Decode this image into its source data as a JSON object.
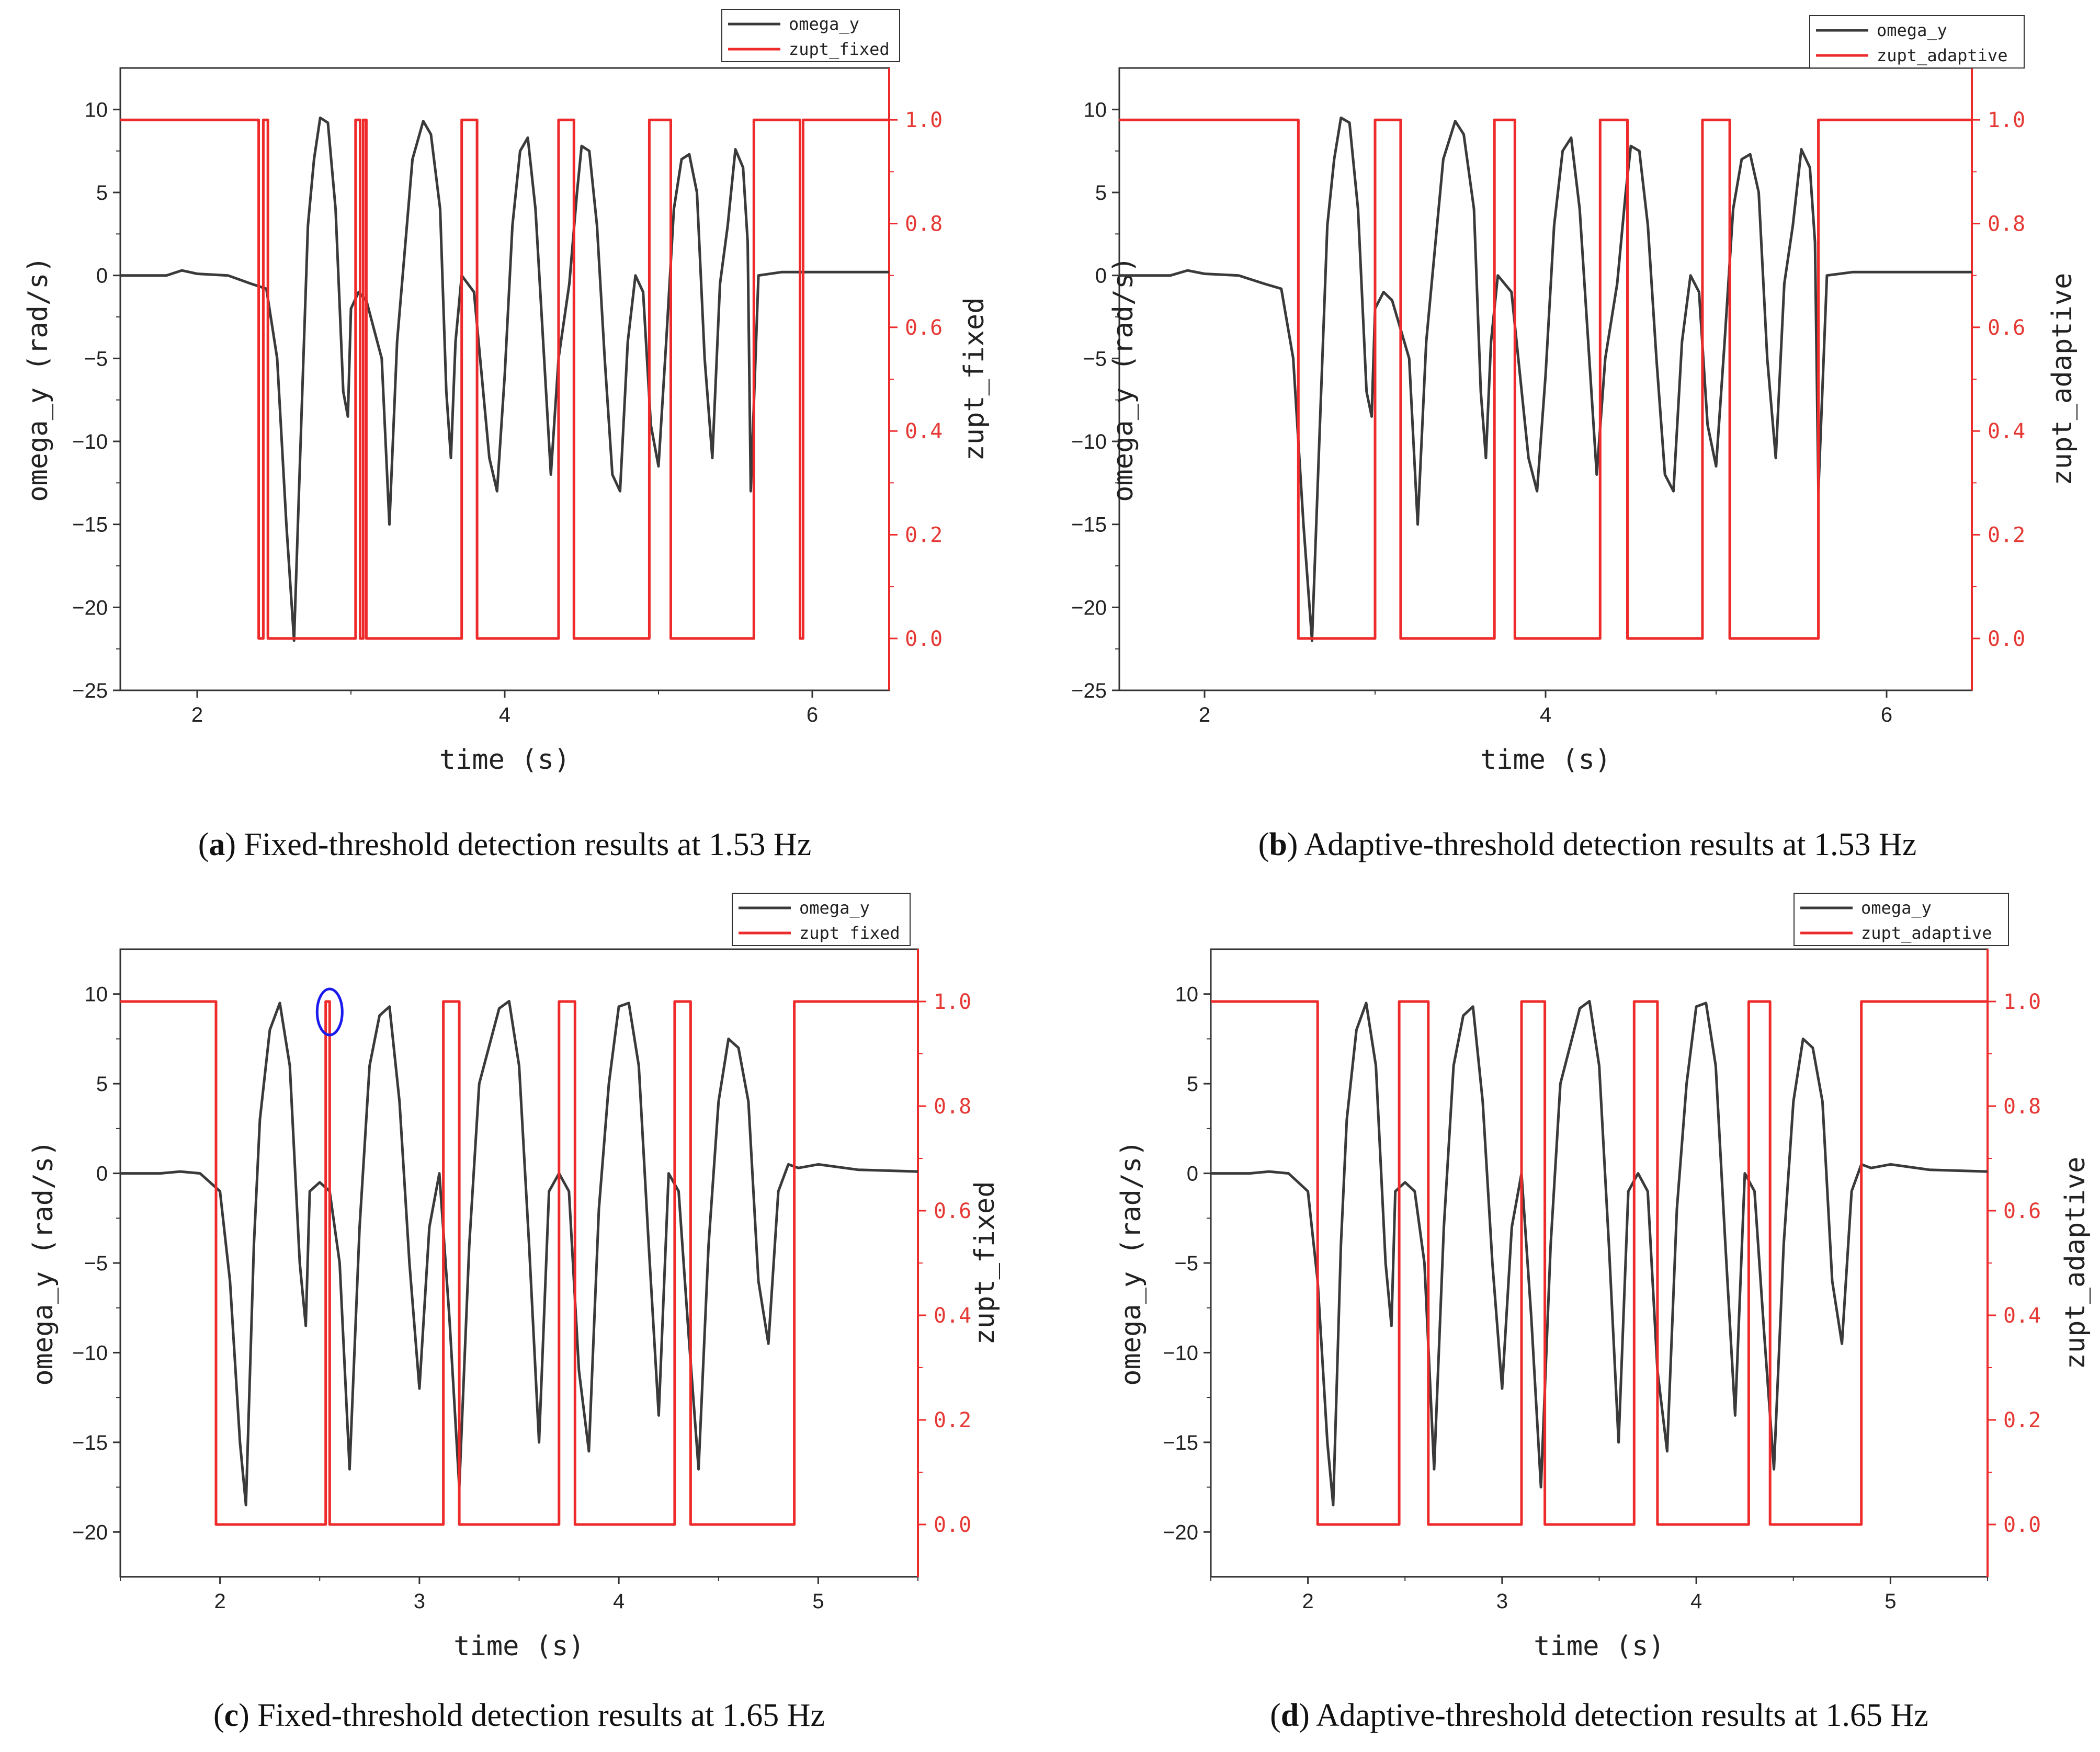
{
  "colors": {
    "omega": "#3a3a3a",
    "zupt": "#ee2a2a",
    "marker": "#1a1aee"
  },
  "chart_data": [
    {
      "id": "a",
      "type": "line",
      "caption_label": "a",
      "caption_text": "Fixed-threshold detection results at 1.53 Hz",
      "xlabel": "time (s)",
      "ylabel": "omega_y (rad/s)",
      "y2label": "zupt_fixed",
      "xlim": [
        1.5,
        6.5
      ],
      "ylim": [
        -25,
        12.5
      ],
      "y2lim": [
        -0.1,
        1.1
      ],
      "xticks": [
        2,
        4,
        6
      ],
      "yticks": [
        10,
        5,
        0,
        -5,
        -10,
        -15,
        -20,
        -25
      ],
      "y2ticks": [
        0.0,
        0.2,
        0.4,
        0.6,
        0.8,
        1.0
      ],
      "legend": [
        "omega_y",
        "zupt_fixed"
      ],
      "x_tick_labels": [
        "2",
        "4",
        "6"
      ],
      "y_tick_labels": [
        "10",
        "5",
        "0",
        "−5",
        "−10",
        "−15",
        "−20",
        "−25"
      ],
      "y2_tick_labels": [
        "0.0",
        "0.2",
        "0.4",
        "0.6",
        "0.8",
        "1.0"
      ],
      "series": [
        {
          "name": "omega_y",
          "axis": "left",
          "x": [
            1.5,
            1.8,
            1.9,
            2.0,
            2.2,
            2.35,
            2.45,
            2.52,
            2.58,
            2.63,
            2.68,
            2.72,
            2.76,
            2.8,
            2.85,
            2.9,
            2.95,
            2.98,
            3.0,
            3.05,
            3.1,
            3.2,
            3.25,
            3.3,
            3.4,
            3.47,
            3.52,
            3.58,
            3.62,
            3.65,
            3.68,
            3.72,
            3.8,
            3.9,
            3.95,
            4.0,
            4.05,
            4.1,
            4.15,
            4.2,
            4.25,
            4.3,
            4.35,
            4.42,
            4.47,
            4.5,
            4.55,
            4.6,
            4.65,
            4.7,
            4.75,
            4.8,
            4.85,
            4.9,
            4.95,
            5.0,
            5.05,
            5.1,
            5.15,
            5.2,
            5.25,
            5.3,
            5.35,
            5.4,
            5.45,
            5.5,
            5.55,
            5.58,
            5.6,
            5.65,
            5.8,
            6.0,
            6.2,
            6.5
          ],
          "values": [
            0,
            0,
            0.3,
            0.1,
            0.0,
            -0.5,
            -0.8,
            -5,
            -15,
            -22,
            -8,
            3,
            7,
            9.5,
            9.2,
            4,
            -7,
            -8.5,
            -2,
            -1,
            -1.5,
            -5,
            -15,
            -4,
            7,
            9.3,
            8.5,
            4,
            -7,
            -11,
            -4,
            0,
            -1,
            -11,
            -13,
            -6,
            3,
            7.5,
            8.3,
            4,
            -4,
            -12,
            -5,
            -0.5,
            5,
            7.8,
            7.5,
            3,
            -5,
            -12,
            -13,
            -4,
            0,
            -1,
            -9,
            -11.5,
            -4,
            4,
            7,
            7.3,
            5,
            -5,
            -11,
            -0.5,
            3,
            7.6,
            6.5,
            2,
            -13,
            0,
            0.2,
            0.2,
            0.2,
            0.2
          ]
        },
        {
          "name": "zupt_fixed",
          "axis": "right",
          "x": [
            1.5,
            2.4,
            2.4,
            2.43,
            2.43,
            2.46,
            2.46,
            2.52,
            2.52,
            3.03,
            3.03,
            3.06,
            3.06,
            3.08,
            3.08,
            3.1,
            3.1,
            3.72,
            3.72,
            3.82,
            3.82,
            4.35,
            4.35,
            4.45,
            4.45,
            4.94,
            4.94,
            5.08,
            5.08,
            5.62,
            5.62,
            5.92,
            5.92,
            5.94,
            5.94,
            6.5
          ],
          "values": [
            1,
            1,
            0,
            0,
            1,
            1,
            0,
            0,
            0,
            0,
            1,
            1,
            0,
            0,
            1,
            1,
            0,
            0,
            1,
            1,
            0,
            0,
            1,
            1,
            0,
            0,
            1,
            1,
            0,
            0,
            1,
            1,
            0,
            0,
            1,
            1
          ]
        }
      ]
    },
    {
      "id": "b",
      "type": "line",
      "caption_label": "b",
      "caption_text": "Adaptive-threshold detection results at 1.53 Hz",
      "xlabel": "time (s)",
      "ylabel": "omega_y (rad/s)",
      "y2label": "zupt_adaptive",
      "xlim": [
        1.5,
        6.5
      ],
      "ylim": [
        -25,
        12.5
      ],
      "y2lim": [
        -0.1,
        1.1
      ],
      "xticks": [
        2,
        4,
        6
      ],
      "yticks": [
        10,
        5,
        0,
        -5,
        -10,
        -15,
        -20,
        -25
      ],
      "y2ticks": [
        0.0,
        0.2,
        0.4,
        0.6,
        0.8,
        1.0
      ],
      "legend": [
        "omega_y",
        "zupt_adaptive"
      ],
      "x_tick_labels": [
        "2",
        "4",
        "6"
      ],
      "y_tick_labels": [
        "10",
        "5",
        "0",
        "−5",
        "−10",
        "−15",
        "−20",
        "−25"
      ],
      "y2_tick_labels": [
        "0.0",
        "0.2",
        "0.4",
        "0.6",
        "0.8",
        "1.0"
      ],
      "series": [
        {
          "name": "omega_y",
          "axis": "left",
          "x": [
            1.5,
            1.8,
            1.9,
            2.0,
            2.2,
            2.35,
            2.45,
            2.52,
            2.58,
            2.63,
            2.68,
            2.72,
            2.76,
            2.8,
            2.85,
            2.9,
            2.95,
            2.98,
            3.0,
            3.05,
            3.1,
            3.2,
            3.25,
            3.3,
            3.4,
            3.47,
            3.52,
            3.58,
            3.62,
            3.65,
            3.68,
            3.72,
            3.8,
            3.9,
            3.95,
            4.0,
            4.05,
            4.1,
            4.15,
            4.2,
            4.25,
            4.3,
            4.35,
            4.42,
            4.47,
            4.5,
            4.55,
            4.6,
            4.65,
            4.7,
            4.75,
            4.8,
            4.85,
            4.9,
            4.95,
            5.0,
            5.05,
            5.1,
            5.15,
            5.2,
            5.25,
            5.3,
            5.35,
            5.4,
            5.45,
            5.5,
            5.55,
            5.58,
            5.6,
            5.65,
            5.8,
            6.0,
            6.2,
            6.5
          ],
          "values": [
            0,
            0,
            0.3,
            0.1,
            0.0,
            -0.5,
            -0.8,
            -5,
            -15,
            -22,
            -8,
            3,
            7,
            9.5,
            9.2,
            4,
            -7,
            -8.5,
            -2,
            -1,
            -1.5,
            -5,
            -15,
            -4,
            7,
            9.3,
            8.5,
            4,
            -7,
            -11,
            -4,
            0,
            -1,
            -11,
            -13,
            -6,
            3,
            7.5,
            8.3,
            4,
            -4,
            -12,
            -5,
            -0.5,
            5,
            7.8,
            7.5,
            3,
            -5,
            -12,
            -13,
            -4,
            0,
            -1,
            -9,
            -11.5,
            -4,
            4,
            7,
            7.3,
            5,
            -5,
            -11,
            -0.5,
            3,
            7.6,
            6.5,
            2,
            -13,
            0,
            0.2,
            0.2,
            0.2,
            0.2
          ]
        },
        {
          "name": "zupt_adaptive",
          "axis": "right",
          "x": [
            1.5,
            2.55,
            2.55,
            3.0,
            3.0,
            3.15,
            3.15,
            3.7,
            3.7,
            3.82,
            3.82,
            4.32,
            4.32,
            4.48,
            4.48,
            4.92,
            4.92,
            5.08,
            5.08,
            5.6,
            5.6,
            6.5
          ],
          "values": [
            1,
            1,
            0,
            0,
            1,
            1,
            0,
            0,
            1,
            1,
            0,
            0,
            1,
            1,
            0,
            0,
            1,
            1,
            0,
            0,
            1,
            1
          ]
        }
      ]
    },
    {
      "id": "c",
      "type": "line",
      "caption_label": "c",
      "caption_text": "Fixed-threshold detection results at 1.65 Hz",
      "xlabel": "time (s)",
      "ylabel": "omega_y (rad/s)",
      "y2label": "zupt_fixed",
      "xlim": [
        1.5,
        5.5
      ],
      "ylim": [
        -22.5,
        12.5
      ],
      "y2lim": [
        -0.1,
        1.1
      ],
      "xticks": [
        2,
        3,
        4,
        5
      ],
      "yticks": [
        10,
        5,
        0,
        -5,
        -10,
        -15,
        -20
      ],
      "y2ticks": [
        0.0,
        0.2,
        0.4,
        0.6,
        0.8,
        1.0
      ],
      "legend": [
        "omega_y",
        "zupt fixed"
      ],
      "x_tick_labels": [
        "2",
        "3",
        "4",
        "5"
      ],
      "y_tick_labels": [
        "10",
        "5",
        "0",
        "−5",
        "−10",
        "−15",
        "−20"
      ],
      "y2_tick_labels": [
        "0.0",
        "0.2",
        "0.4",
        "0.6",
        "0.8",
        "1.0"
      ],
      "highlight": {
        "x": 2.55,
        "y2": 1.0
      },
      "series": [
        {
          "name": "omega_y",
          "axis": "left",
          "x": [
            1.5,
            1.7,
            1.8,
            1.9,
            1.95,
            2.0,
            2.05,
            2.1,
            2.13,
            2.17,
            2.2,
            2.25,
            2.3,
            2.35,
            2.4,
            2.43,
            2.45,
            2.5,
            2.55,
            2.6,
            2.65,
            2.7,
            2.75,
            2.8,
            2.85,
            2.9,
            2.95,
            3.0,
            3.05,
            3.1,
            3.15,
            3.2,
            3.25,
            3.3,
            3.4,
            3.45,
            3.5,
            3.55,
            3.6,
            3.65,
            3.7,
            3.75,
            3.8,
            3.85,
            3.9,
            3.95,
            4.0,
            4.05,
            4.1,
            4.15,
            4.2,
            4.25,
            4.3,
            4.35,
            4.4,
            4.45,
            4.5,
            4.55,
            4.6,
            4.65,
            4.7,
            4.75,
            4.8,
            4.85,
            4.9,
            5.0,
            5.2,
            5.5
          ],
          "values": [
            0,
            0,
            0.1,
            0,
            -0.5,
            -1,
            -6,
            -15,
            -18.5,
            -4,
            3,
            8,
            9.5,
            6,
            -5,
            -8.5,
            -1,
            -0.5,
            -1,
            -5,
            -16.5,
            -3,
            6,
            8.8,
            9.3,
            4,
            -5,
            -12,
            -3,
            0,
            -8,
            -17.5,
            -4,
            5,
            9.2,
            9.6,
            6,
            -4,
            -15,
            -1,
            0,
            -1,
            -11,
            -15.5,
            -2,
            5,
            9.3,
            9.5,
            6,
            -4,
            -13.5,
            0,
            -1,
            -9,
            -16.5,
            -4,
            4,
            7.5,
            7,
            4,
            -6,
            -9.5,
            -1,
            0.5,
            0.3,
            0.5,
            0.2,
            0.1
          ]
        },
        {
          "name": "zupt_fixed",
          "axis": "right",
          "x": [
            1.5,
            1.98,
            1.98,
            2.53,
            2.53,
            2.55,
            2.55,
            2.57,
            2.57,
            3.12,
            3.12,
            3.2,
            3.2,
            3.7,
            3.7,
            3.78,
            3.78,
            4.28,
            4.28,
            4.36,
            4.36,
            4.88,
            4.88,
            5.5
          ],
          "values": [
            1,
            1,
            0,
            0,
            1,
            1,
            0,
            0,
            0,
            0,
            1,
            1,
            0,
            0,
            1,
            1,
            0,
            0,
            1,
            1,
            0,
            0,
            1,
            1
          ]
        }
      ]
    },
    {
      "id": "d",
      "type": "line",
      "caption_label": "d",
      "caption_text": "Adaptive-threshold detection results at 1.65 Hz",
      "xlabel": "time (s)",
      "ylabel": "omega_y (rad/s)",
      "y2label": "zupt_adaptive",
      "xlim": [
        1.5,
        5.5
      ],
      "ylim": [
        -22.5,
        12.5
      ],
      "y2lim": [
        -0.1,
        1.1
      ],
      "xticks": [
        2,
        3,
        4,
        5
      ],
      "yticks": [
        10,
        5,
        0,
        -5,
        -10,
        -15,
        -20
      ],
      "y2ticks": [
        0.0,
        0.2,
        0.4,
        0.6,
        0.8,
        1.0
      ],
      "legend": [
        "omega_y",
        "zupt_adaptive"
      ],
      "x_tick_labels": [
        "2",
        "3",
        "4",
        "5"
      ],
      "y_tick_labels": [
        "10",
        "5",
        "0",
        "−5",
        "−10",
        "−15",
        "−20"
      ],
      "y2_tick_labels": [
        "0.0",
        "0.2",
        "0.4",
        "0.6",
        "0.8",
        "1.0"
      ],
      "series": [
        {
          "name": "omega_y",
          "axis": "left",
          "x": [
            1.5,
            1.7,
            1.8,
            1.9,
            1.95,
            2.0,
            2.05,
            2.1,
            2.13,
            2.17,
            2.2,
            2.25,
            2.3,
            2.35,
            2.4,
            2.43,
            2.45,
            2.5,
            2.55,
            2.6,
            2.65,
            2.7,
            2.75,
            2.8,
            2.85,
            2.9,
            2.95,
            3.0,
            3.05,
            3.1,
            3.15,
            3.2,
            3.25,
            3.3,
            3.4,
            3.45,
            3.5,
            3.55,
            3.6,
            3.65,
            3.7,
            3.75,
            3.8,
            3.85,
            3.9,
            3.95,
            4.0,
            4.05,
            4.1,
            4.15,
            4.2,
            4.25,
            4.3,
            4.35,
            4.4,
            4.45,
            4.5,
            4.55,
            4.6,
            4.65,
            4.7,
            4.75,
            4.8,
            4.85,
            4.9,
            5.0,
            5.2,
            5.5
          ],
          "values": [
            0,
            0,
            0.1,
            0,
            -0.5,
            -1,
            -6,
            -15,
            -18.5,
            -4,
            3,
            8,
            9.5,
            6,
            -5,
            -8.5,
            -1,
            -0.5,
            -1,
            -5,
            -16.5,
            -3,
            6,
            8.8,
            9.3,
            4,
            -5,
            -12,
            -3,
            0,
            -8,
            -17.5,
            -4,
            5,
            9.2,
            9.6,
            6,
            -4,
            -15,
            -1,
            0,
            -1,
            -11,
            -15.5,
            -2,
            5,
            9.3,
            9.5,
            6,
            -4,
            -13.5,
            0,
            -1,
            -9,
            -16.5,
            -4,
            4,
            7.5,
            7,
            4,
            -6,
            -9.5,
            -1,
            0.5,
            0.3,
            0.5,
            0.2,
            0.1
          ]
        },
        {
          "name": "zupt_adaptive",
          "axis": "right",
          "x": [
            1.5,
            2.05,
            2.05,
            2.47,
            2.47,
            2.62,
            2.62,
            3.1,
            3.1,
            3.22,
            3.22,
            3.68,
            3.68,
            3.8,
            3.8,
            4.27,
            4.27,
            4.38,
            4.38,
            4.85,
            4.85,
            5.5
          ],
          "values": [
            1,
            1,
            0,
            0,
            1,
            1,
            0,
            0,
            1,
            1,
            0,
            0,
            1,
            1,
            0,
            0,
            1,
            1,
            0,
            0,
            1,
            1
          ]
        }
      ]
    }
  ]
}
